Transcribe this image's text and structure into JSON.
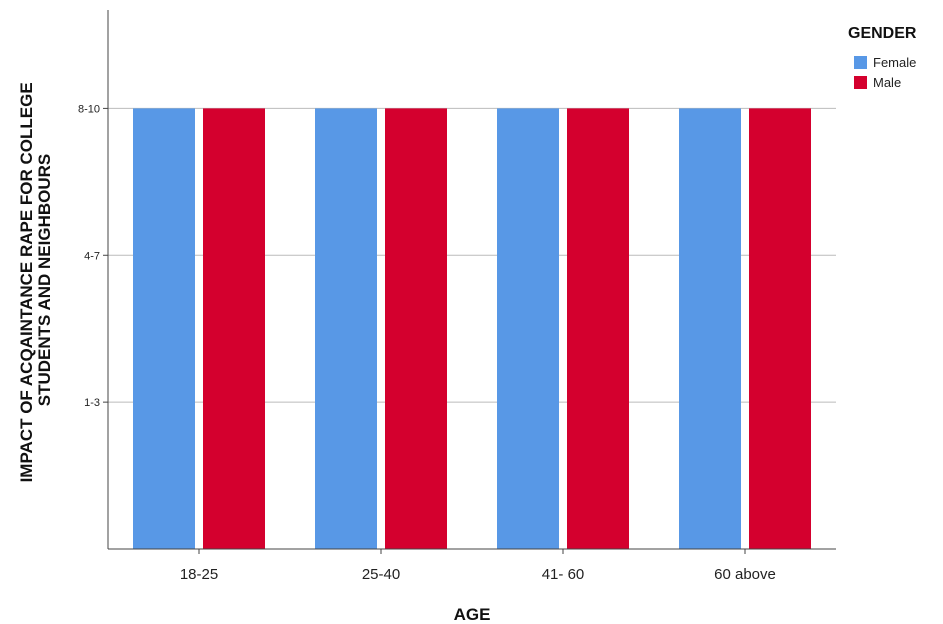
{
  "chart_data": {
    "type": "bar",
    "categories": [
      "18-25",
      "25-40",
      "41- 60",
      "60 above"
    ],
    "xlabel": "AGE",
    "ylabel": "IMPACT OF ACQAINTANCE RAPE FOR COLLEGE STUDENTS AND NEIGHBOURS",
    "ylabel_lines": [
      "IMPACT OF ACQAINTANCE RAPE FOR COLLEGE",
      "STUDENTS AND NEIGHBOURS"
    ],
    "y_ticks": [
      "1-3",
      "4-7",
      "8-10"
    ],
    "ylim": [
      0,
      3.67
    ],
    "grid": true,
    "legend": {
      "title": "GENDER",
      "placement": "top-right"
    },
    "series": [
      {
        "name": "Female",
        "color": "#5898E6",
        "values": [
          3,
          3,
          3,
          3
        ]
      },
      {
        "name": "Male",
        "color": "#D4002E",
        "values": [
          3,
          3,
          3,
          3
        ]
      }
    ]
  }
}
